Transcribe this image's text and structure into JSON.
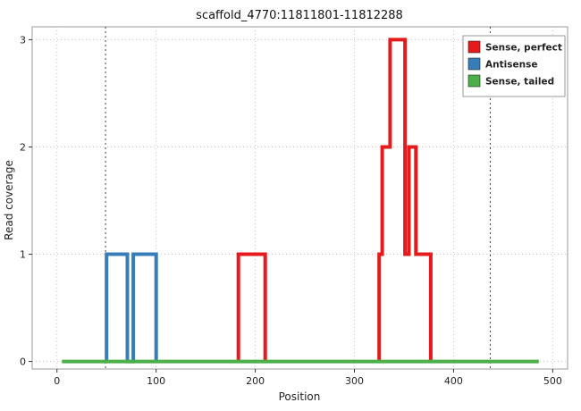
{
  "chart_data": {
    "type": "line",
    "variant": "step",
    "title": "scaffold_4770:11811801-11812288",
    "xlabel": "Position",
    "ylabel": "Read coverage",
    "xlim": [
      -25,
      515
    ],
    "ylim": [
      -0.07,
      3.12
    ],
    "xticks": [
      0,
      100,
      200,
      300,
      400,
      500
    ],
    "yticks": [
      0,
      1,
      2,
      3
    ],
    "grid": "dotted",
    "grid_color": "#c8c8c8",
    "panel_background": "#ffffff",
    "panel_border": "#999999",
    "tick_color": "#333333",
    "tick_label_color": "#444444",
    "vlines": {
      "x": [
        49,
        437
      ],
      "color": "#444444",
      "style": "dotted"
    },
    "legend": {
      "position": "top-right",
      "background": "#ffffff",
      "border": "#999999",
      "entries": [
        "Sense, perfect",
        "Antisense",
        "Sense, tailed"
      ]
    },
    "series": [
      {
        "name": "Sense, perfect",
        "color": "#E41A1C",
        "width": 4,
        "z": 2,
        "segments": [
          [
            [
              183,
              0
            ],
            [
              183,
              1
            ],
            [
              210,
              1
            ],
            [
              210,
              0
            ]
          ],
          [
            [
              325,
              0
            ],
            [
              325,
              1
            ],
            [
              328,
              1
            ],
            [
              328,
              2
            ],
            [
              336,
              2
            ],
            [
              336,
              3
            ],
            [
              351,
              3
            ],
            [
              351,
              1
            ],
            [
              355,
              1
            ],
            [
              355,
              2
            ],
            [
              362,
              2
            ],
            [
              362,
              1
            ],
            [
              377,
              1
            ],
            [
              377,
              0
            ]
          ]
        ]
      },
      {
        "name": "Antisense",
        "color": "#377EB8",
        "width": 4,
        "z": 1,
        "segments": [
          [
            [
              50,
              0
            ],
            [
              50,
              1
            ],
            [
              71,
              1
            ],
            [
              71,
              0
            ],
            [
              77,
              0
            ],
            [
              77,
              1
            ],
            [
              100,
              1
            ],
            [
              100,
              0
            ]
          ]
        ]
      },
      {
        "name": "Sense, tailed",
        "color": "#4DAF4A",
        "width": 4,
        "z": 3,
        "segments": [
          [
            [
              5,
              0
            ],
            [
              486,
              0
            ]
          ]
        ]
      }
    ]
  }
}
